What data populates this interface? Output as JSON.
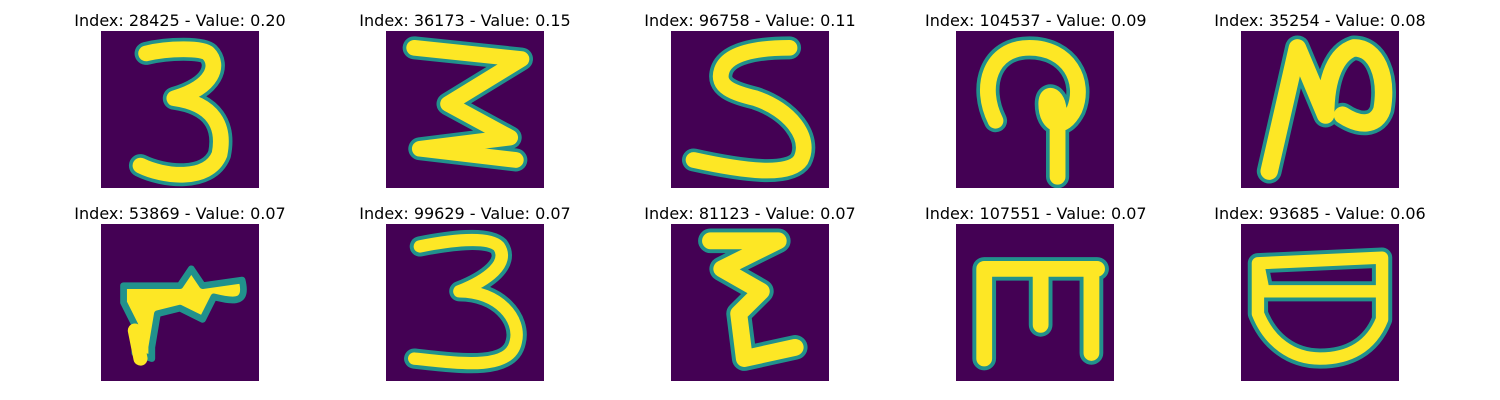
{
  "panels": [
    {
      "title": "Index: 28425 - Value: 0.20",
      "glyph": "3"
    },
    {
      "title": "Index: 36173 - Value: 0.15",
      "glyph": "3"
    },
    {
      "title": "Index: 96758 - Value: 0.11",
      "glyph": "5"
    },
    {
      "title": "Index: 104537 - Value: 0.09",
      "glyph": "curl"
    },
    {
      "title": "Index: 35254 - Value: 0.08",
      "glyph": "N"
    },
    {
      "title": "Index: 53869 - Value: 0.07",
      "glyph": "blob"
    },
    {
      "title": "Index: 99629 - Value: 0.07",
      "glyph": "3"
    },
    {
      "title": "Index: 81123 - Value: 0.07",
      "glyph": "zigzag"
    },
    {
      "title": "Index: 107551 - Value: 0.07",
      "glyph": "m"
    },
    {
      "title": "Index: 93685 - Value: 0.06",
      "glyph": "bowl"
    }
  ],
  "colors": {
    "background": "#440154",
    "edge": "#21918c",
    "stroke": "#fde725"
  }
}
